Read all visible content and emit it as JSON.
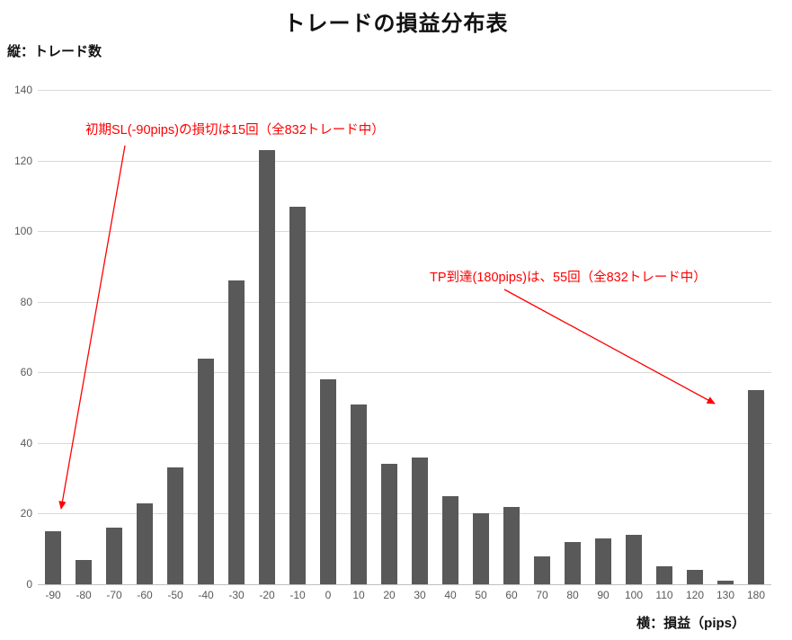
{
  "chart_data": {
    "type": "bar",
    "title": "トレードの損益分布表",
    "ylabel": "縦：トレード数",
    "xlabel": "横：損益（pips）",
    "categories": [
      "-90",
      "-80",
      "-70",
      "-60",
      "-50",
      "-40",
      "-30",
      "-20",
      "-10",
      "0",
      "10",
      "20",
      "30",
      "40",
      "50",
      "60",
      "70",
      "80",
      "90",
      "100",
      "110",
      "120",
      "130",
      "180"
    ],
    "values": [
      15,
      7,
      16,
      23,
      33,
      64,
      86,
      123,
      107,
      58,
      51,
      34,
      36,
      25,
      20,
      22,
      8,
      12,
      13,
      14,
      5,
      4,
      1,
      55
    ],
    "ylim": [
      0,
      140
    ],
    "yticks": [
      0,
      20,
      40,
      60,
      80,
      100,
      120,
      140
    ],
    "grid": true,
    "legend": "none"
  },
  "annotations": {
    "sl_note": "初期SL(-90pips)の損切は15回（全832トレード中）",
    "tp_note": "TP到達(180pips)は、55回（全832トレード中）"
  },
  "colors": {
    "bar": "#595959",
    "annotation": "#ff0000",
    "gridline": "#d9d9d9",
    "tick_text": "#595959"
  }
}
